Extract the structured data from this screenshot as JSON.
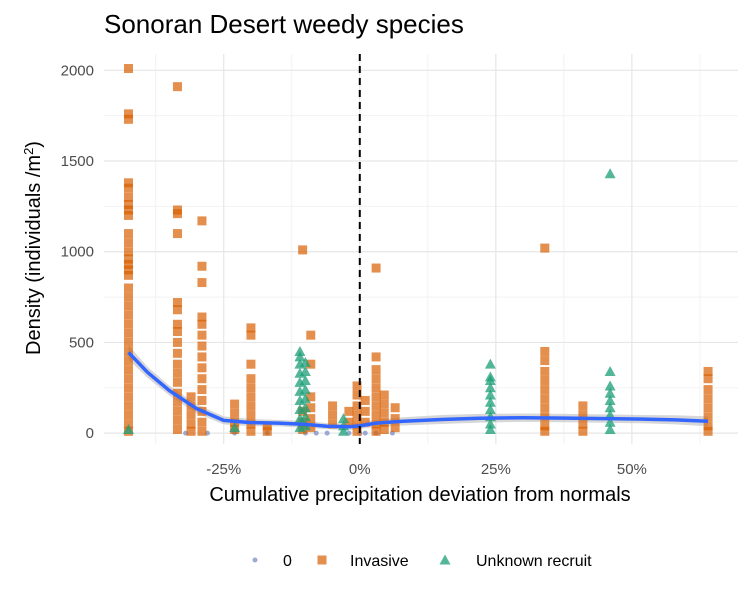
{
  "chart_data": {
    "type": "scatter",
    "title": "Sonoran Desert weedy species",
    "xlabel": "Cumulative precipitation deviation from normals",
    "ylabel_main": "Density (individuals /m",
    "ylabel_sup": "2",
    "ylabel_close": ")",
    "xlim": [
      -0.47,
      0.695
    ],
    "ylim": [
      -60,
      2090
    ],
    "x_ticks": [
      {
        "value": -0.25,
        "label": "-25%"
      },
      {
        "value": 0.0,
        "label": "0%"
      },
      {
        "value": 0.25,
        "label": "25%"
      },
      {
        "value": 0.5,
        "label": "50%"
      }
    ],
    "y_ticks": [
      {
        "value": 0,
        "label": "0"
      },
      {
        "value": 500,
        "label": "500"
      },
      {
        "value": 1000,
        "label": "1000"
      },
      {
        "value": 1500,
        "label": "1500"
      },
      {
        "value": 2000,
        "label": "2000"
      }
    ],
    "reference_line_x": 0,
    "legend_position": "bottom",
    "series": [
      {
        "name": "0",
        "marker": "circle",
        "color": "#7b8fc6",
        "points": [
          [
            -0.32,
            0
          ],
          [
            -0.28,
            0
          ],
          [
            -0.23,
            0
          ],
          [
            -0.17,
            0
          ],
          [
            -0.1,
            0
          ],
          [
            -0.08,
            0
          ],
          [
            -0.06,
            0
          ],
          [
            -0.02,
            0
          ],
          [
            0.0,
            0
          ],
          [
            0.01,
            0
          ],
          [
            0.03,
            0
          ],
          [
            0.06,
            0
          ]
        ]
      },
      {
        "name": "Invasive",
        "marker": "square",
        "color": "#d95f02",
        "points": [
          [
            -0.425,
            2010
          ],
          [
            -0.425,
            1760
          ],
          [
            -0.425,
            1730
          ],
          [
            -0.425,
            1380
          ],
          [
            -0.425,
            1350
          ],
          [
            -0.425,
            1300
          ],
          [
            -0.425,
            1260
          ],
          [
            -0.425,
            1230
          ],
          [
            -0.425,
            1200
          ],
          [
            -0.425,
            1100
          ],
          [
            -0.425,
            1050
          ],
          [
            -0.425,
            1000
          ],
          [
            -0.425,
            960
          ],
          [
            -0.425,
            930
          ],
          [
            -0.425,
            900
          ],
          [
            -0.425,
            870
          ],
          [
            -0.425,
            800
          ],
          [
            -0.425,
            750
          ],
          [
            -0.425,
            700
          ],
          [
            -0.425,
            650
          ],
          [
            -0.425,
            600
          ],
          [
            -0.425,
            550
          ],
          [
            -0.425,
            500
          ],
          [
            -0.425,
            450
          ],
          [
            -0.425,
            400
          ],
          [
            -0.425,
            350
          ],
          [
            -0.425,
            300
          ],
          [
            -0.425,
            250
          ],
          [
            -0.425,
            200
          ],
          [
            -0.425,
            150
          ],
          [
            -0.425,
            100
          ],
          [
            -0.425,
            50
          ],
          [
            -0.425,
            10
          ],
          [
            -0.335,
            1910
          ],
          [
            -0.335,
            1230
          ],
          [
            -0.335,
            1210
          ],
          [
            -0.335,
            1100
          ],
          [
            -0.335,
            720
          ],
          [
            -0.335,
            680
          ],
          [
            -0.335,
            600
          ],
          [
            -0.335,
            560
          ],
          [
            -0.335,
            500
          ],
          [
            -0.335,
            440
          ],
          [
            -0.335,
            380
          ],
          [
            -0.335,
            330
          ],
          [
            -0.335,
            280
          ],
          [
            -0.335,
            220
          ],
          [
            -0.335,
            170
          ],
          [
            -0.335,
            120
          ],
          [
            -0.335,
            70
          ],
          [
            -0.335,
            20
          ],
          [
            -0.31,
            200
          ],
          [
            -0.31,
            150
          ],
          [
            -0.31,
            100
          ],
          [
            -0.31,
            50
          ],
          [
            -0.31,
            10
          ],
          [
            -0.29,
            1170
          ],
          [
            -0.29,
            920
          ],
          [
            -0.29,
            830
          ],
          [
            -0.29,
            640
          ],
          [
            -0.29,
            600
          ],
          [
            -0.29,
            540
          ],
          [
            -0.29,
            480
          ],
          [
            -0.29,
            420
          ],
          [
            -0.29,
            360
          ],
          [
            -0.29,
            300
          ],
          [
            -0.29,
            240
          ],
          [
            -0.29,
            180
          ],
          [
            -0.29,
            120
          ],
          [
            -0.29,
            60
          ],
          [
            -0.29,
            10
          ],
          [
            -0.23,
            160
          ],
          [
            -0.23,
            110
          ],
          [
            -0.23,
            60
          ],
          [
            -0.23,
            20
          ],
          [
            -0.2,
            580
          ],
          [
            -0.2,
            540
          ],
          [
            -0.2,
            380
          ],
          [
            -0.2,
            300
          ],
          [
            -0.2,
            250
          ],
          [
            -0.2,
            200
          ],
          [
            -0.2,
            150
          ],
          [
            -0.2,
            100
          ],
          [
            -0.2,
            50
          ],
          [
            -0.2,
            10
          ],
          [
            -0.17,
            40
          ],
          [
            -0.17,
            10
          ],
          [
            -0.105,
            1010
          ],
          [
            -0.105,
            120
          ],
          [
            -0.105,
            60
          ],
          [
            -0.105,
            20
          ],
          [
            -0.09,
            540
          ],
          [
            -0.09,
            380
          ],
          [
            -0.09,
            200
          ],
          [
            -0.09,
            140
          ],
          [
            -0.09,
            80
          ],
          [
            -0.09,
            30
          ],
          [
            -0.05,
            150
          ],
          [
            -0.05,
            100
          ],
          [
            -0.05,
            50
          ],
          [
            -0.02,
            120
          ],
          [
            -0.02,
            60
          ],
          [
            -0.005,
            260
          ],
          [
            -0.005,
            210
          ],
          [
            -0.005,
            150
          ],
          [
            -0.005,
            100
          ],
          [
            -0.005,
            50
          ],
          [
            -0.005,
            10
          ],
          [
            0.01,
            180
          ],
          [
            0.01,
            120
          ],
          [
            0.01,
            60
          ],
          [
            0.03,
            910
          ],
          [
            0.03,
            420
          ],
          [
            0.03,
            350
          ],
          [
            0.03,
            300
          ],
          [
            0.03,
            250
          ],
          [
            0.03,
            200
          ],
          [
            0.03,
            150
          ],
          [
            0.03,
            100
          ],
          [
            0.03,
            50
          ],
          [
            0.03,
            10
          ],
          [
            0.045,
            210
          ],
          [
            0.045,
            160
          ],
          [
            0.045,
            110
          ],
          [
            0.045,
            60
          ],
          [
            0.045,
            20
          ],
          [
            0.065,
            140
          ],
          [
            0.065,
            80
          ],
          [
            0.065,
            30
          ],
          [
            0.34,
            1020
          ],
          [
            0.34,
            450
          ],
          [
            0.34,
            400
          ],
          [
            0.34,
            340
          ],
          [
            0.34,
            290
          ],
          [
            0.34,
            240
          ],
          [
            0.34,
            190
          ],
          [
            0.34,
            140
          ],
          [
            0.34,
            90
          ],
          [
            0.34,
            40
          ],
          [
            0.34,
            10
          ],
          [
            0.41,
            150
          ],
          [
            0.41,
            100
          ],
          [
            0.41,
            50
          ],
          [
            0.41,
            10
          ],
          [
            0.64,
            340
          ],
          [
            0.64,
            300
          ],
          [
            0.64,
            240
          ],
          [
            0.64,
            190
          ],
          [
            0.64,
            140
          ],
          [
            0.64,
            90
          ],
          [
            0.64,
            40
          ],
          [
            0.64,
            10
          ]
        ]
      },
      {
        "name": "Unknown recruit",
        "marker": "triangle",
        "color": "#1b9e77",
        "points": [
          [
            -0.425,
            20
          ],
          [
            -0.23,
            30
          ],
          [
            -0.11,
            450
          ],
          [
            -0.11,
            420
          ],
          [
            -0.11,
            380
          ],
          [
            -0.11,
            330
          ],
          [
            -0.11,
            280
          ],
          [
            -0.11,
            230
          ],
          [
            -0.11,
            180
          ],
          [
            -0.11,
            130
          ],
          [
            -0.11,
            80
          ],
          [
            -0.11,
            30
          ],
          [
            -0.1,
            390
          ],
          [
            -0.1,
            340
          ],
          [
            -0.1,
            290
          ],
          [
            -0.1,
            240
          ],
          [
            -0.1,
            190
          ],
          [
            -0.1,
            140
          ],
          [
            -0.1,
            90
          ],
          [
            -0.1,
            40
          ],
          [
            -0.03,
            80
          ],
          [
            -0.03,
            40
          ],
          [
            -0.03,
            10
          ],
          [
            0.24,
            380
          ],
          [
            0.24,
            310
          ],
          [
            0.24,
            290
          ],
          [
            0.24,
            250
          ],
          [
            0.24,
            210
          ],
          [
            0.24,
            170
          ],
          [
            0.24,
            130
          ],
          [
            0.24,
            90
          ],
          [
            0.24,
            50
          ],
          [
            0.24,
            20
          ],
          [
            0.46,
            1430
          ],
          [
            0.46,
            340
          ],
          [
            0.46,
            260
          ],
          [
            0.46,
            220
          ],
          [
            0.46,
            180
          ],
          [
            0.46,
            140
          ],
          [
            0.46,
            100
          ],
          [
            0.46,
            60
          ],
          [
            0.46,
            20
          ]
        ]
      }
    ],
    "smooth": {
      "color": "#3366ff",
      "ribbon_color": "#bdbdbd",
      "points": [
        [
          -0.425,
          445,
          485,
          405
        ],
        [
          -0.39,
          335,
          365,
          305
        ],
        [
          -0.35,
          235,
          262,
          208
        ],
        [
          -0.3,
          135,
          160,
          110
        ],
        [
          -0.25,
          70,
          92,
          48
        ],
        [
          -0.2,
          58,
          78,
          38
        ],
        [
          -0.15,
          55,
          73,
          37
        ],
        [
          -0.1,
          48,
          66,
          30
        ],
        [
          -0.06,
          38,
          55,
          21
        ],
        [
          -0.02,
          35,
          52,
          18
        ],
        [
          0.0,
          40,
          58,
          22
        ],
        [
          0.03,
          55,
          75,
          35
        ],
        [
          0.08,
          65,
          88,
          42
        ],
        [
          0.15,
          75,
          100,
          50
        ],
        [
          0.22,
          82,
          106,
          58
        ],
        [
          0.3,
          85,
          108,
          62
        ],
        [
          0.38,
          83,
          106,
          60
        ],
        [
          0.45,
          80,
          103,
          57
        ],
        [
          0.52,
          77,
          100,
          54
        ],
        [
          0.58,
          73,
          98,
          48
        ],
        [
          0.64,
          65,
          92,
          38
        ]
      ]
    }
  }
}
